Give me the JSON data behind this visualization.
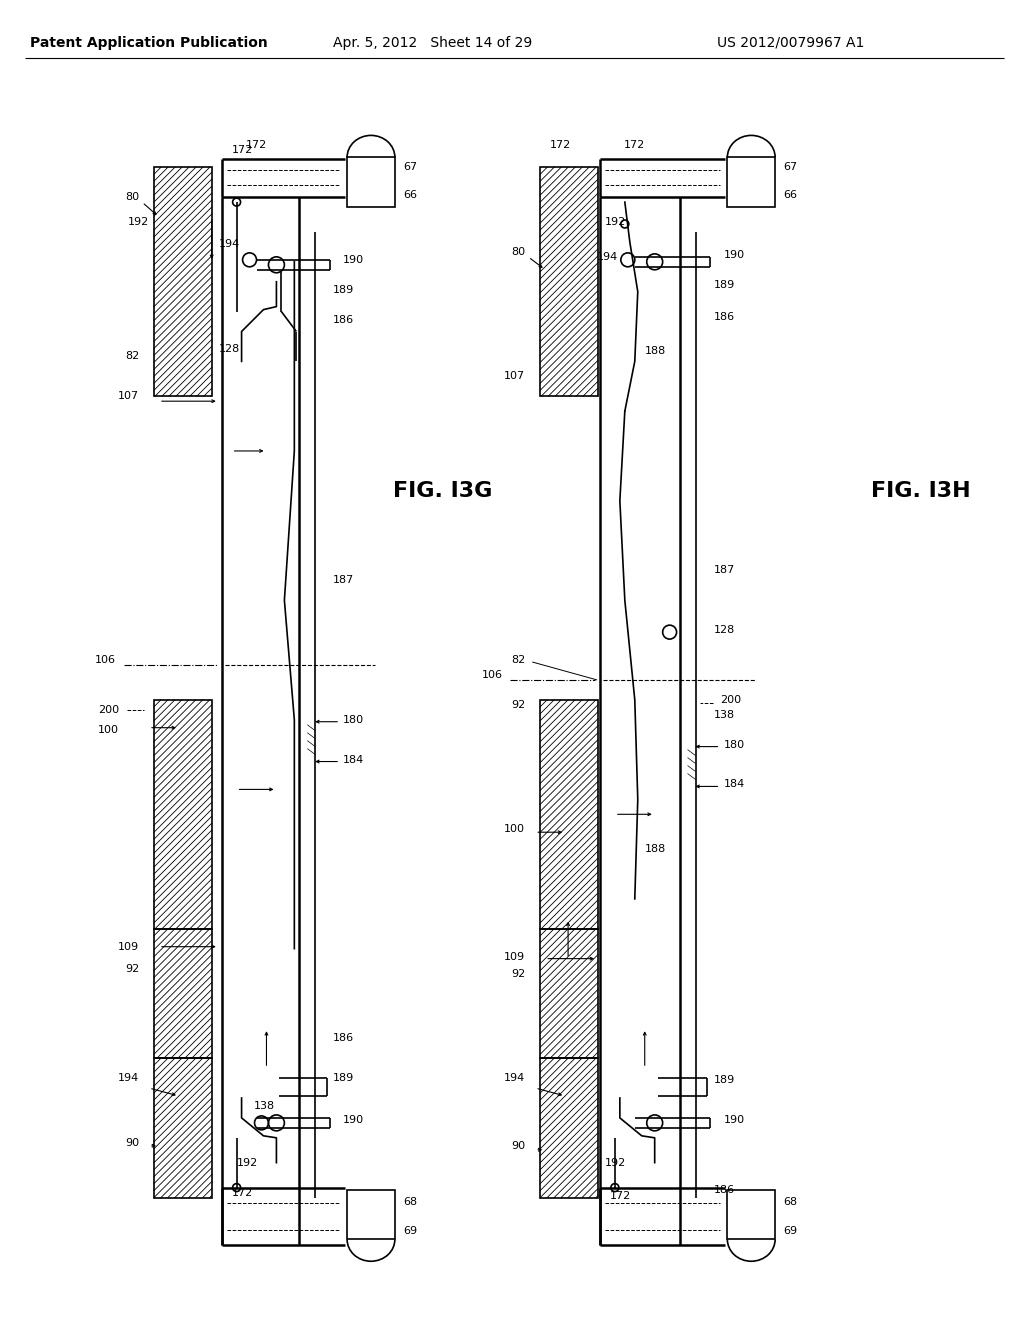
{
  "header_left": "Patent Application Publication",
  "header_mid": "Apr. 5, 2012   Sheet 14 of 29",
  "header_right": "US 2012/0079967 A1",
  "fig_g_label": "FIG. I3G",
  "fig_h_label": "FIG. I3H",
  "bg_color": "#ffffff",
  "line_color": "#000000"
}
